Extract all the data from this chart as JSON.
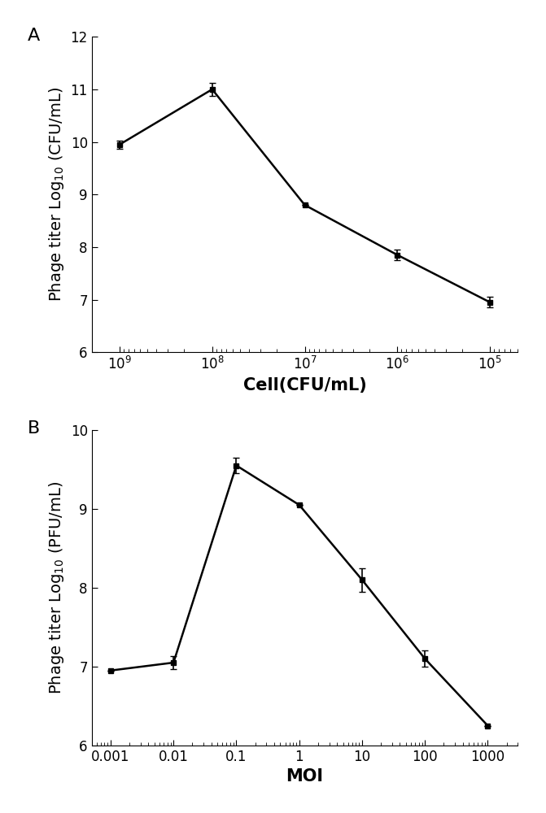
{
  "panel_A": {
    "x": [
      1000000000.0,
      100000000.0,
      10000000.0,
      1000000.0,
      100000.0
    ],
    "y": [
      9.95,
      11.0,
      8.8,
      7.85,
      6.95
    ],
    "yerr": [
      0.08,
      0.12,
      0.0,
      0.1,
      0.1
    ],
    "xlabel": "Cell(CFU/mL)",
    "ylabel": "Phage titer Log$_{10}$ (CFU/mL)",
    "ylim": [
      6,
      12
    ],
    "yticks": [
      6,
      7,
      8,
      9,
      10,
      11,
      12
    ],
    "xticks": [
      1000000000.0,
      100000000.0,
      10000000.0,
      1000000.0,
      100000.0
    ],
    "xtick_labels": [
      "$10^9$",
      "$10^8$",
      "$10^7$",
      "$10^6$",
      "$10^5$"
    ],
    "label": "A"
  },
  "panel_B": {
    "x": [
      0.001,
      0.01,
      0.1,
      1,
      10,
      100,
      1000
    ],
    "y": [
      6.95,
      7.05,
      9.55,
      9.05,
      8.1,
      7.1,
      6.25
    ],
    "yerr": [
      0.0,
      0.08,
      0.1,
      0.0,
      0.15,
      0.1,
      0.0
    ],
    "xlabel": "MOI",
    "ylabel": "Phage titer Log$_{10}$ (PFU/mL)",
    "ylim": [
      6,
      10
    ],
    "yticks": [
      6,
      7,
      8,
      9,
      10
    ],
    "xticks": [
      0.001,
      0.01,
      0.1,
      1,
      10,
      100,
      1000
    ],
    "xtick_labels": [
      "0.001",
      "0.01",
      "0.1",
      "1",
      "10",
      "100",
      "1000"
    ],
    "label": "B"
  },
  "line_color": "#000000",
  "marker": "s",
  "markersize": 5,
  "linewidth": 1.8,
  "capsize": 3,
  "elinewidth": 1.2,
  "tick_fontsize": 12,
  "axis_label_fontsize": 14,
  "panel_label_fontsize": 16,
  "xlabel_fontsize": 15
}
